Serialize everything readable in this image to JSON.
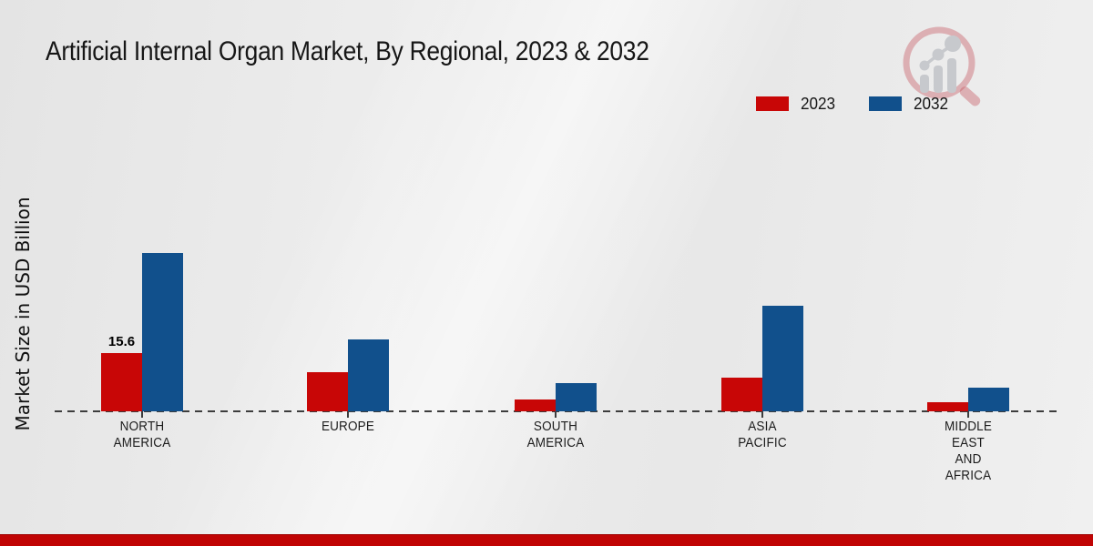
{
  "header": {
    "title": "Artificial Internal Organ Market, By Regional, 2023 & 2032"
  },
  "colors": {
    "series_2023_red": "#c80606",
    "series_2032_blue": "#11508c",
    "footer_red": "#c00404",
    "axis": "#3d3d3d",
    "background": "#eaeaea"
  },
  "icons": {
    "logo": "magnifier-bar-chart-logo"
  },
  "chart_data": {
    "type": "bar",
    "title": "Artificial Internal Organ Market, By Regional, 2023 & 2032",
    "xlabel": "",
    "ylabel": "Market Size in USD Billion",
    "categories": [
      "NORTH AMERICA",
      "EUROPE",
      "SOUTH AMERICA",
      "ASIA PACIFIC",
      "MIDDLE EAST AND AFRICA"
    ],
    "category_lines": [
      [
        "NORTH",
        "AMERICA"
      ],
      [
        "EUROPE"
      ],
      [
        "SOUTH",
        "AMERICA"
      ],
      [
        "ASIA",
        "PACIFIC"
      ],
      [
        "MIDDLE",
        "EAST",
        "AND",
        "AFRICA"
      ]
    ],
    "series": [
      {
        "name": "2023",
        "color": "#c80606",
        "values": [
          15.6,
          10.4,
          3.1,
          9.0,
          2.5
        ]
      },
      {
        "name": "2032",
        "color": "#11508c",
        "values": [
          42.4,
          19.2,
          7.6,
          28.3,
          6.4
        ]
      }
    ],
    "data_labels": [
      {
        "series": "2023",
        "category": "NORTH AMERICA",
        "text": "15.6"
      }
    ],
    "ylim": [
      0,
      45
    ],
    "grid": false,
    "baseline_style": "dashed",
    "legend_position": "top-right"
  }
}
